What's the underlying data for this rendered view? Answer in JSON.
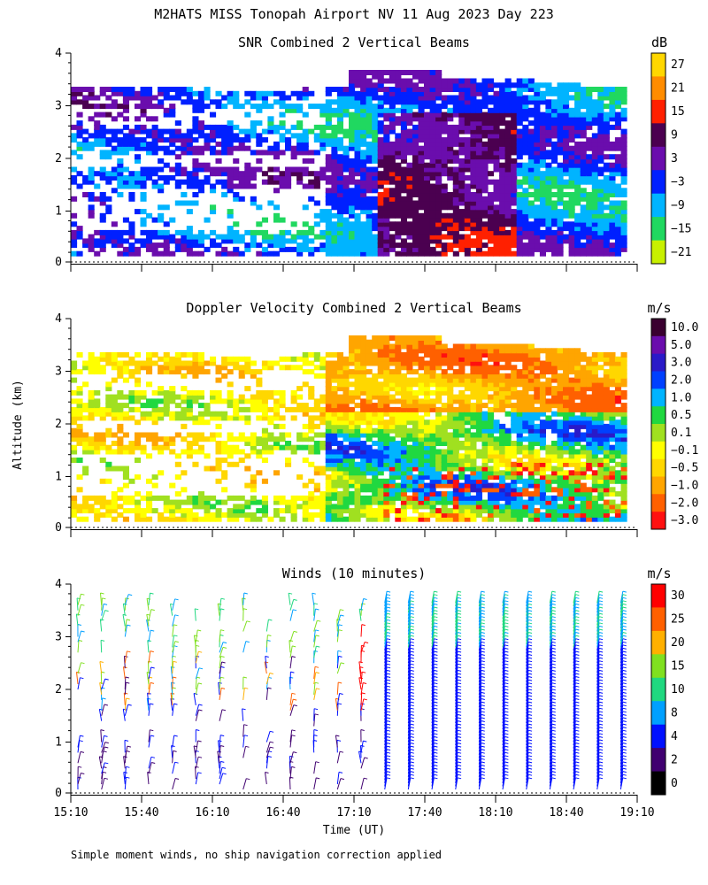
{
  "figure": {
    "title": "M2HATS MISS Tonopah Airport NV  11 Aug 2023 Day 223",
    "y_axis_label": "Altitude (km)",
    "x_axis_label": "Time (UT)",
    "footnote": "Simple moment winds, no ship navigation correction applied",
    "time_ticks": [
      "15:10",
      "15:40",
      "16:10",
      "16:40",
      "17:10",
      "17:40",
      "18:10",
      "18:40",
      "19:10"
    ],
    "altitude_ticks": [
      "0",
      "1",
      "2",
      "3",
      "4"
    ]
  },
  "chart_data": [
    {
      "type": "heatmap",
      "id": "snr",
      "title": "SNR Combined 2 Vertical Beams",
      "units": "dB",
      "xlim": [
        "15:10",
        "19:10"
      ],
      "ylim": [
        0,
        4
      ],
      "colorbar": {
        "labels": [
          "27",
          "21",
          "15",
          "9",
          "3",
          "−3",
          "−9",
          "−15",
          "−21"
        ],
        "colors": [
          "#ffd700",
          "#ff8c00",
          "#ff2000",
          "#4b0050",
          "#6a0dad",
          "#0020ff",
          "#00b4ff",
          "#20d860",
          "#c8f000"
        ]
      },
      "cloud_top_km": [
        3.3,
        3.3,
        3.3,
        3.2,
        3.2,
        3.3,
        3.8,
        3.6,
        3.5,
        3.5,
        3.4,
        3.3
      ]
    },
    {
      "type": "heatmap",
      "id": "doppler",
      "title": "Doppler Velocity Combined 2 Vertical Beams",
      "units": "m/s",
      "xlim": [
        "15:10",
        "19:10"
      ],
      "ylim": [
        0,
        4
      ],
      "colorbar": {
        "labels": [
          "10.0",
          "5.0",
          "3.0",
          "2.0",
          "1.0",
          "0.5",
          "0.1",
          "−0.1",
          "−0.5",
          "−1.0",
          "−2.0",
          "−3.0"
        ],
        "colors": [
          "#3a0030",
          "#6a0dad",
          "#2a1ac8",
          "#0040ff",
          "#00b4ff",
          "#20d840",
          "#a0e020",
          "#ffff00",
          "#ffd700",
          "#ffa500",
          "#ff6000",
          "#ff1010"
        ]
      }
    },
    {
      "type": "scatter",
      "id": "winds",
      "title": "Winds (10 minutes)",
      "units": "m/s",
      "xlim": [
        "15:10",
        "19:10"
      ],
      "ylim": [
        0,
        4
      ],
      "colorbar": {
        "labels": [
          "30",
          "25",
          "20",
          "15",
          "10",
          "8",
          "4",
          "2",
          "0"
        ],
        "colors": [
          "#ff0000",
          "#ff6000",
          "#ffb000",
          "#80e020",
          "#20d880",
          "#00a0ff",
          "#0010ff",
          "#400070",
          "#000000"
        ]
      }
    }
  ]
}
